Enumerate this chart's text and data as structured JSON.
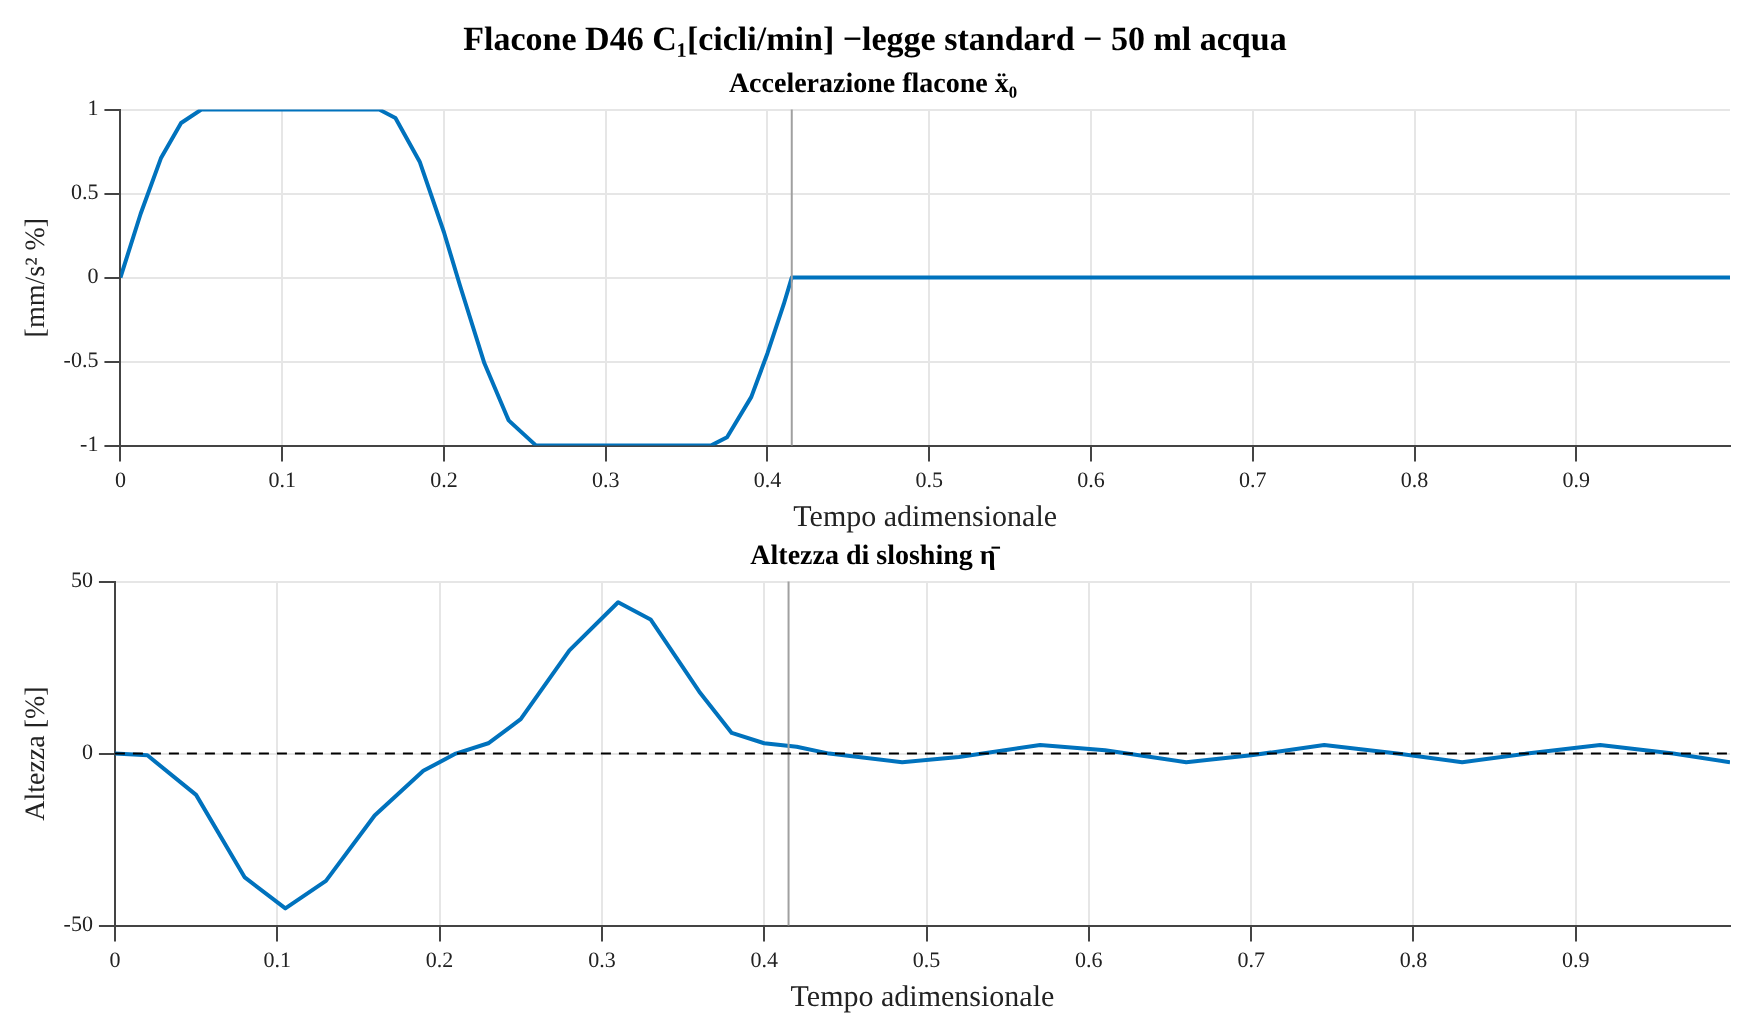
{
  "chart_data": [
    {
      "type": "line",
      "title": "Flacone D46 C₁[cicli/min] −legge standard − 50 ml acqua",
      "subtitle": "Accelerazione flacone ẍ₀",
      "xlabel": "Tempo adimensionale",
      "ylabel": "[mm/s² %]",
      "xlim": [
        0,
        0.995
      ],
      "xticks": [
        0,
        0.1,
        0.2,
        0.3,
        0.4,
        0.5,
        0.6,
        0.7,
        0.8,
        0.9
      ],
      "ylim": [
        -1,
        1
      ],
      "yticks": [
        -1,
        -0.5,
        0,
        0.5,
        1
      ],
      "grid": true,
      "legend": false,
      "series": [
        {
          "color": "#0072bd",
          "x": [
            0,
            0.0125,
            0.025,
            0.0375,
            0.05,
            0.16,
            0.17,
            0.185,
            0.2,
            0.21,
            0.225,
            0.24,
            0.257,
            0.365,
            0.375,
            0.39,
            0.4,
            0.41,
            0.415,
            0.995
          ],
          "values": [
            0,
            0.38,
            0.71,
            0.92,
            1,
            1,
            0.95,
            0.69,
            0.27,
            -0.05,
            -0.51,
            -0.85,
            -1,
            -1,
            -0.95,
            -0.71,
            -0.45,
            -0.16,
            0,
            0
          ]
        }
      ],
      "ref_lines": [
        {
          "axis": "x",
          "value": 0.415,
          "color": "#a0a0a0"
        }
      ]
    },
    {
      "type": "line",
      "title": "Altezza di sloshing η̄",
      "xlabel": "Tempo adimensionale",
      "ylabel": "Altezza [%]",
      "xlim": [
        0,
        0.995
      ],
      "xticks": [
        0,
        0.1,
        0.2,
        0.3,
        0.4,
        0.5,
        0.6,
        0.7,
        0.8,
        0.9
      ],
      "ylim": [
        -50,
        50
      ],
      "yticks": [
        -50,
        0,
        50
      ],
      "grid": true,
      "legend": false,
      "series": [
        {
          "color": "#0072bd",
          "x": [
            0,
            0.02,
            0.05,
            0.08,
            0.105,
            0.13,
            0.16,
            0.19,
            0.21,
            0.23,
            0.25,
            0.28,
            0.31,
            0.33,
            0.36,
            0.38,
            0.4,
            0.42,
            0.44,
            0.485,
            0.52,
            0.57,
            0.61,
            0.66,
            0.7,
            0.745,
            0.79,
            0.83,
            0.87,
            0.915,
            0.96,
            0.995
          ],
          "values": [
            0,
            -0.5,
            -12,
            -36,
            -45,
            -37,
            -18,
            -5,
            0,
            3,
            10,
            30,
            44,
            39,
            18,
            6,
            3,
            2,
            0,
            -2.5,
            -1,
            2.5,
            1,
            -2.5,
            -0.5,
            2.5,
            0,
            -2.5,
            0,
            2.5,
            0,
            -2.5
          ]
        }
      ],
      "ref_lines": [
        {
          "axis": "x",
          "value": 0.415,
          "color": "#a0a0a0"
        },
        {
          "axis": "y",
          "value": 0,
          "color": "#000000",
          "line_style": "dashed"
        }
      ]
    }
  ]
}
